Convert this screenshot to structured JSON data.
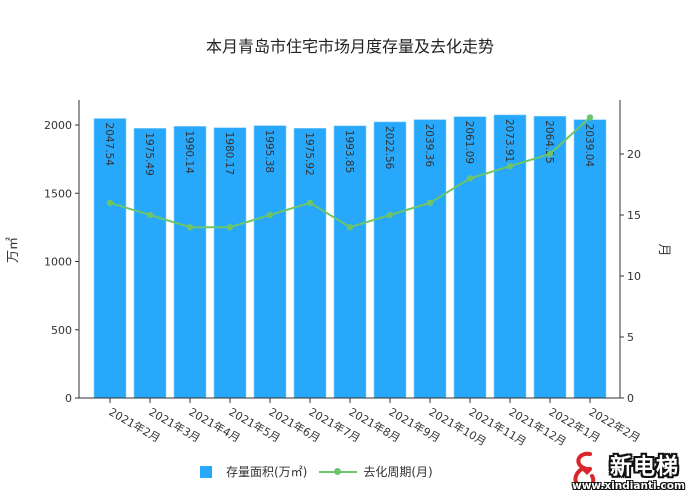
{
  "title": "本月青岛市住宅市场月度存量及去化走势",
  "legend": {
    "bar_label": "存量面积(万㎡)",
    "line_label": "去化周期(月)"
  },
  "watermark": {
    "name": "新电梯",
    "url": "www.xindianti.com"
  },
  "colors": {
    "bar": "#27a8fa",
    "line": "#6cc56c",
    "axis": "#333333",
    "text": "#333333"
  },
  "chart_data": {
    "type": "bar",
    "title": "本月青岛市住宅市场月度存量及去化走势",
    "xlabel": "",
    "ylabel": "万㎡",
    "y2label": "月",
    "ylim": [
      0,
      2200
    ],
    "y2lim": [
      0,
      24
    ],
    "yticks": [
      0,
      500,
      1000,
      1500,
      2000
    ],
    "y2ticks": [
      0,
      5,
      10,
      15,
      20
    ],
    "grid": false,
    "legend_position": "bottom",
    "categories": [
      "2021年2月",
      "2021年3月",
      "2021年4月",
      "2021年5月",
      "2021年6月",
      "2021年7月",
      "2021年8月",
      "2021年9月",
      "2021年10月",
      "2021年11月",
      "2021年12月",
      "2022年1月",
      "2022年2月"
    ],
    "series": [
      {
        "name": "存量面积(万㎡)",
        "type": "bar",
        "axis": "left",
        "values": [
          2047.54,
          1975.49,
          1990.14,
          1980.17,
          1995.38,
          1975.92,
          1993.85,
          2022.56,
          2039.36,
          2061.09,
          2073.91,
          2064.25,
          2039.04
        ],
        "labels": [
          "2047.54",
          "1975.49",
          "1990.14",
          "1980.17",
          "1995.38",
          "1975.92",
          "1993.85",
          "2022.56",
          "2039.36",
          "2061.09",
          "2073.91",
          "2064.25",
          "2039.04"
        ]
      },
      {
        "name": "去化周期(月)",
        "type": "line",
        "axis": "right",
        "values": [
          16,
          15,
          14,
          14,
          15,
          16,
          14,
          15,
          16,
          18,
          19,
          20,
          23
        ]
      }
    ]
  }
}
